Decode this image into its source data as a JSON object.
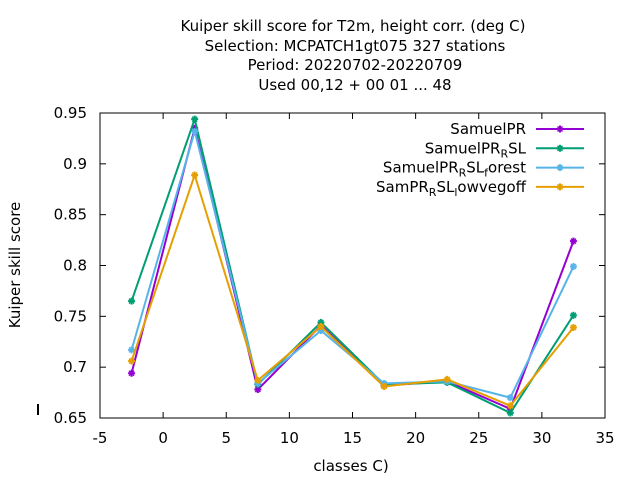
{
  "chart_data": {
    "type": "line",
    "title_lines": [
      "Kuiper skill score  for T2m, height corr. (deg C)",
      "Selection: MCPATCH1gt075    327 stations",
      "Period: 20220702-20220709",
      "Used  00,12  + 00 01 ... 48"
    ],
    "xlabel": "classes C)",
    "ylabel": "Kuiper skill score",
    "xlim": [
      -5,
      35
    ],
    "ylim": [
      0.65,
      0.95
    ],
    "xticks": [
      "-5",
      "0",
      "5",
      "10",
      "15",
      "20",
      "25",
      "30",
      "35"
    ],
    "yticks": [
      "0.65",
      "0.7",
      "0.75",
      "0.8",
      "0.85",
      "0.9",
      "0.95"
    ],
    "grid": false,
    "legend_position": "top-right",
    "x": [
      -2.5,
      2.5,
      7.5,
      12.5,
      17.5,
      22.5,
      27.5,
      32.5
    ],
    "series": [
      {
        "name": "SamuelPR",
        "legend": {
          "main": "SamuelPR",
          "sub1": "",
          "mid": "",
          "sub2": "",
          "tail": ""
        },
        "color": "#9400d3",
        "values": [
          0.694,
          0.935,
          0.678,
          0.741,
          0.682,
          0.686,
          0.659,
          0.824
        ]
      },
      {
        "name": "SamuelPR_RSL",
        "legend": {
          "main": "SamuelPR",
          "sub1": "R",
          "mid": "SL",
          "sub2": "",
          "tail": ""
        },
        "color": "#009e73",
        "values": [
          0.765,
          0.944,
          0.683,
          0.744,
          0.683,
          0.685,
          0.655,
          0.751
        ]
      },
      {
        "name": "SamuelPR_RSL_forest",
        "legend": {
          "main": "SamuelPR",
          "sub1": "R",
          "mid": "SL",
          "sub2": "f",
          "tail": "orest"
        },
        "color": "#56b4e9",
        "values": [
          0.717,
          0.932,
          0.684,
          0.736,
          0.684,
          0.686,
          0.67,
          0.799
        ]
      },
      {
        "name": "SamPR_RSL_lowvegoff",
        "legend": {
          "main": "SamPR",
          "sub1": "R",
          "mid": "SL",
          "sub2": "l",
          "tail": "owvegoff"
        },
        "color": "#e69f00",
        "values": [
          0.706,
          0.889,
          0.687,
          0.74,
          0.681,
          0.688,
          0.662,
          0.739
        ]
      }
    ]
  }
}
